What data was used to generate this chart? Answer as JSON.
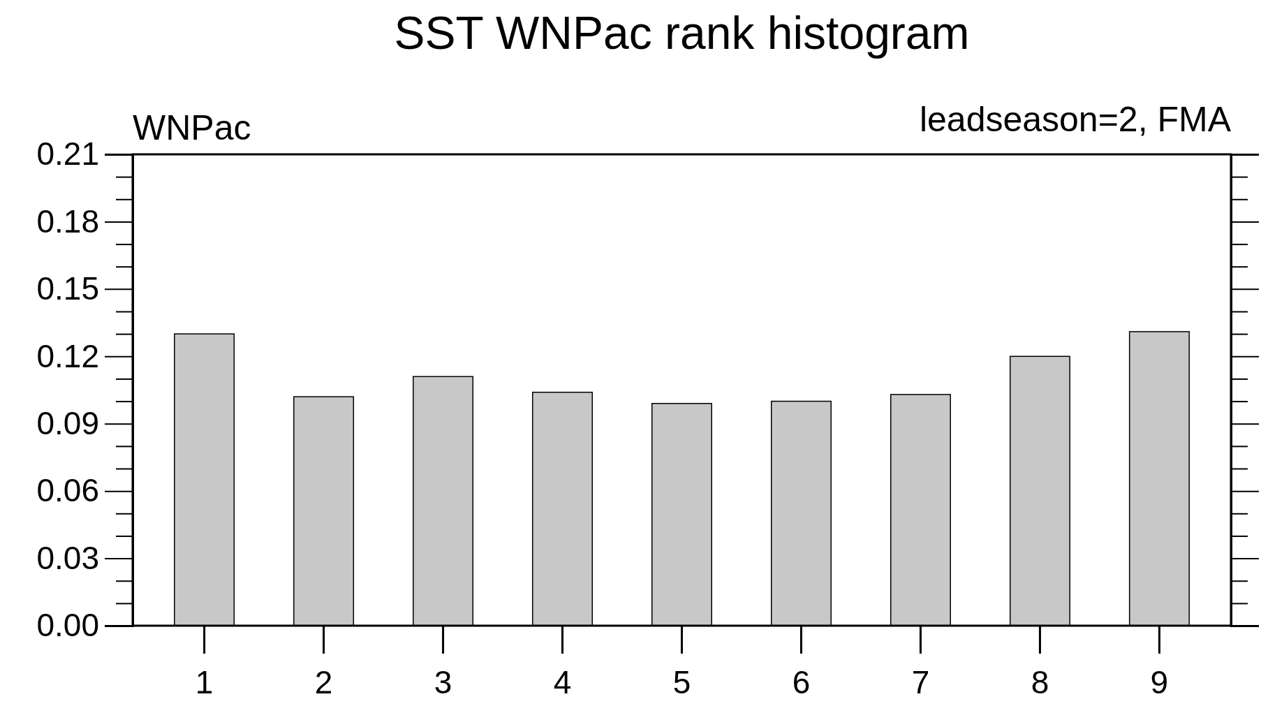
{
  "chart_data": {
    "type": "bar",
    "title": "SST WNPac rank histogram",
    "annotations": [
      "WNPac",
      "leadseason=2, FMA"
    ],
    "categories": [
      "1",
      "2",
      "3",
      "4",
      "5",
      "6",
      "7",
      "8",
      "9"
    ],
    "values": [
      0.13,
      0.102,
      0.111,
      0.104,
      0.099,
      0.1,
      0.103,
      0.12,
      0.131
    ],
    "color": "#c8c8c8",
    "ylim": [
      0,
      0.21
    ],
    "yticks": [
      {
        "value": 0,
        "label": "0.00"
      },
      0.03,
      0.06,
      0.09,
      0.12,
      0.15,
      0.18,
      0.21
    ],
    "grid": false,
    "legend": false
  }
}
